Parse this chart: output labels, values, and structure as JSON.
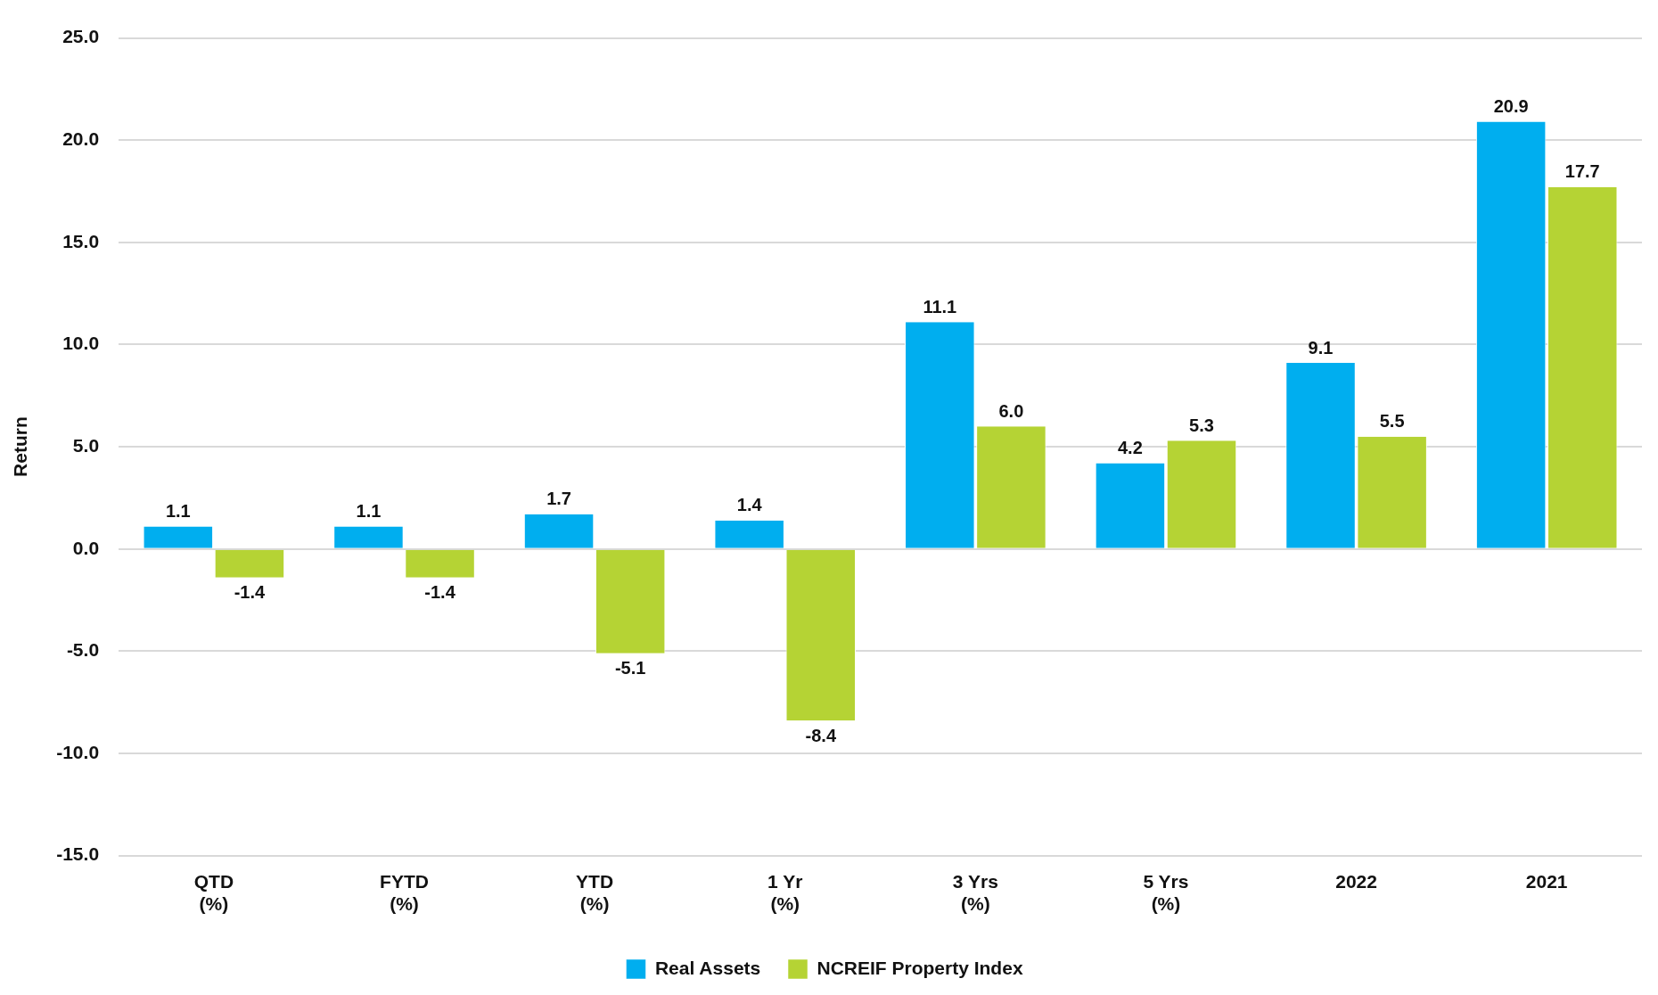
{
  "chart_data": {
    "type": "bar",
    "ylabel": "Return",
    "categories": [
      "QTD\n(%)",
      "FYTD\n(%)",
      "YTD\n(%)",
      "1 Yr\n(%)",
      "3 Yrs\n(%)",
      "5 Yrs\n(%)",
      "2022",
      "2021"
    ],
    "series": [
      {
        "name": "Real Assets",
        "color": "#00aeef",
        "values": [
          1.1,
          1.1,
          1.7,
          1.4,
          11.1,
          4.2,
          9.1,
          20.9
        ],
        "value_labels": [
          "1.1",
          "1.1",
          "1.7",
          "1.4",
          "11.1",
          "4.2",
          "9.1",
          "20.9"
        ]
      },
      {
        "name": "NCREIF Property Index",
        "color": "#b5d334",
        "values": [
          -1.4,
          -1.4,
          -5.1,
          -8.4,
          6.0,
          5.3,
          5.5,
          17.7
        ],
        "value_labels": [
          "-1.4",
          "-1.4",
          "-5.1",
          "-8.4",
          "6.0",
          "5.3",
          "5.5",
          "17.7"
        ]
      }
    ],
    "ylim": [
      -15,
      25
    ],
    "yticks": [
      {
        "value": -15,
        "label": "-15.0"
      },
      {
        "value": -10,
        "label": "-10.0"
      },
      {
        "value": -5,
        "label": "-5.0"
      },
      {
        "value": 0,
        "label": "0.0"
      },
      {
        "value": 5,
        "label": "5.0"
      },
      {
        "value": 10,
        "label": "10.0"
      },
      {
        "value": 15,
        "label": "15.0"
      },
      {
        "value": 20,
        "label": "20.0"
      },
      {
        "value": 25,
        "label": "25.0"
      }
    ],
    "grid": "y",
    "legend": "bottom"
  }
}
